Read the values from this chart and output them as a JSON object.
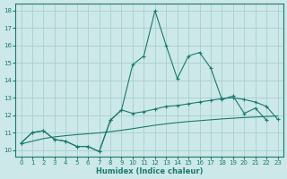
{
  "xlabel": "Humidex (Indice chaleur)",
  "bg_color": "#cce8e8",
  "line_color": "#1a7a6e",
  "grid_color": "#aacece",
  "ylim": [
    9.6,
    18.4
  ],
  "xlim": [
    -0.5,
    23.5
  ],
  "yticks": [
    10,
    11,
    12,
    13,
    14,
    15,
    16,
    17,
    18
  ],
  "xticks": [
    0,
    1,
    2,
    3,
    4,
    5,
    6,
    7,
    8,
    9,
    10,
    11,
    12,
    13,
    14,
    15,
    16,
    17,
    18,
    19,
    20,
    21,
    22,
    23
  ],
  "line1_x": [
    0,
    1,
    2,
    3,
    4,
    5,
    6,
    7,
    8,
    9,
    10,
    11,
    12,
    13,
    14,
    15,
    16,
    17,
    18,
    19,
    20,
    21,
    22
  ],
  "line1_y": [
    10.4,
    11.0,
    11.1,
    10.6,
    10.5,
    10.2,
    10.2,
    9.9,
    11.7,
    12.3,
    14.9,
    15.4,
    18.0,
    16.0,
    14.1,
    15.4,
    15.6,
    14.7,
    12.9,
    13.1,
    12.1,
    12.4,
    11.7
  ],
  "line2_x": [
    0,
    1,
    2,
    3,
    4,
    5,
    6,
    7,
    8,
    9,
    10,
    11,
    12,
    13,
    14,
    15,
    16,
    17,
    18,
    19,
    20,
    21,
    22,
    23
  ],
  "line2_y": [
    10.4,
    11.0,
    11.1,
    10.6,
    10.5,
    10.2,
    10.2,
    9.9,
    11.7,
    12.3,
    12.1,
    12.2,
    12.35,
    12.5,
    12.55,
    12.65,
    12.75,
    12.85,
    12.95,
    13.0,
    12.9,
    12.75,
    12.5,
    11.75
  ],
  "line3_x": [
    0,
    1,
    2,
    3,
    4,
    5,
    6,
    7,
    8,
    9,
    10,
    11,
    12,
    13,
    14,
    15,
    16,
    17,
    18,
    19,
    20,
    21,
    22,
    23
  ],
  "line3_y": [
    10.35,
    10.5,
    10.65,
    10.75,
    10.82,
    10.88,
    10.93,
    10.98,
    11.05,
    11.13,
    11.22,
    11.32,
    11.42,
    11.5,
    11.57,
    11.63,
    11.68,
    11.73,
    11.78,
    11.82,
    11.86,
    11.89,
    11.92,
    11.95
  ]
}
